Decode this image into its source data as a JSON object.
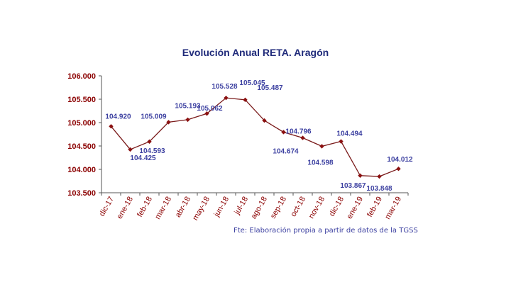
{
  "chart_data": {
    "type": "line",
    "title": "Evolución Anual RETA. Aragón",
    "source": "Fte: Elaboración propia a partir de datos de la TGSS",
    "xlabel": "",
    "ylabel": "",
    "categories": [
      "dic-17",
      "ene-18",
      "feb-18",
      "mar-18",
      "abr-18",
      "may-18",
      "jun-18",
      "jul-18",
      "ago-18",
      "sep-18",
      "oct-18",
      "nov-18",
      "dic-18",
      "ene-19",
      "feb-19",
      "mar-19"
    ],
    "series": [
      {
        "values": [
          104.92,
          104.425,
          104.593,
          105.009,
          105.062,
          105.193,
          105.528,
          105.487,
          105.045,
          104.796,
          104.674,
          104.494,
          104.598,
          103.867,
          103.848,
          104.012
        ],
        "value_labels": [
          "104.920",
          "104.425",
          "104.593",
          "105.009",
          "105.062",
          "105.193",
          "105.528",
          "105.487",
          "105.045",
          "104.796",
          "104.674",
          "104.494",
          "104.598",
          "103.867",
          "103.848",
          "104.012"
        ]
      }
    ],
    "yticks": [
      "103.500",
      "104.000",
      "104.500",
      "105.000",
      "105.500",
      "106.000"
    ],
    "ylim": [
      103.5,
      106.0
    ],
    "grid": false,
    "colors": {
      "line": "#7a1a1a",
      "marker": "#8b1010",
      "labels": "#3b3fa0",
      "ticks": "#8b0000"
    }
  }
}
